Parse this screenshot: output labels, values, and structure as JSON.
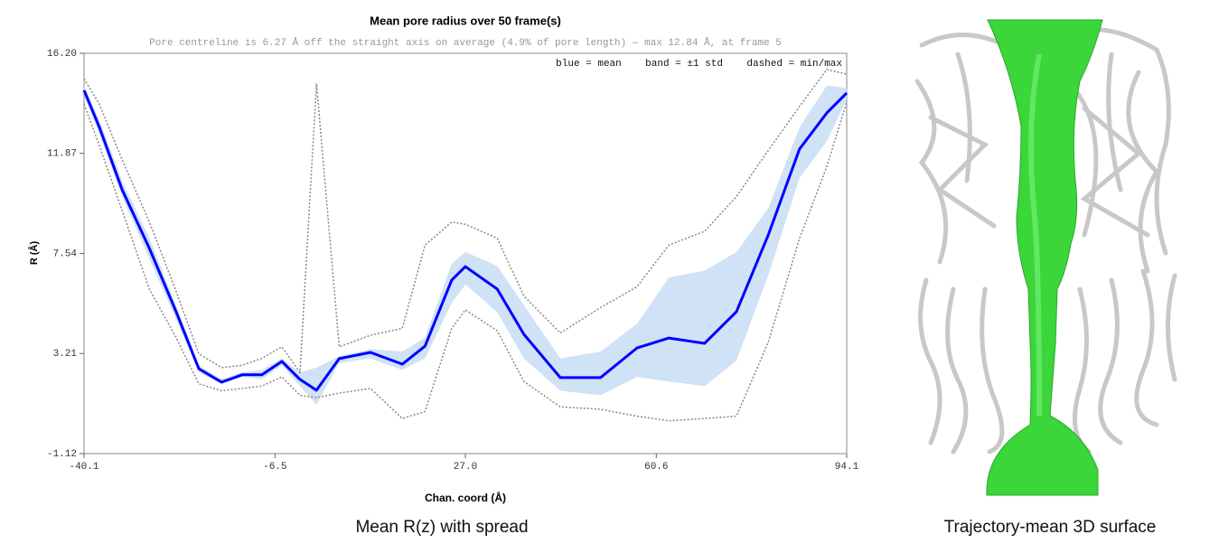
{
  "chart_data": {
    "type": "line-band",
    "title": "Mean pore radius over 50 frame(s)",
    "subtitle": "Pore centreline is 6.27 Å off the straight axis on average (4.9% of pore length) — max 12.84 Å, at frame 5",
    "annotation": "blue = mean    band = ±1 std    dashed = min/max",
    "xlabel": "Chan. coord (Å)",
    "ylabel": "R (Å)",
    "x": [
      -40.1,
      -37.4,
      -33.4,
      -28.6,
      -23.9,
      -19.9,
      -15.9,
      -12.3,
      -8.8,
      -5.3,
      -2.1,
      0.8,
      4.8,
      10.3,
      15.9,
      19.9,
      24.6,
      27.0,
      32.6,
      37.3,
      43.7,
      50.8,
      57.2,
      62.8,
      69.1,
      74.7,
      80.3,
      85.8,
      90.6,
      94.1
    ],
    "mean": [
      14.6,
      13.0,
      10.3,
      7.76,
      5.02,
      2.55,
      1.97,
      2.29,
      2.29,
      2.87,
      2.09,
      1.62,
      2.99,
      3.26,
      2.75,
      3.53,
      6.39,
      6.97,
      6.0,
      4.04,
      2.17,
      2.17,
      3.45,
      3.88,
      3.65,
      5.02,
      8.34,
      12.06,
      13.62,
      14.48
    ],
    "band_upper": [
      14.8,
      13.3,
      10.7,
      8.2,
      5.3,
      2.7,
      2.1,
      2.4,
      2.5,
      3.0,
      2.4,
      2.6,
      3.1,
      3.4,
      3.3,
      3.9,
      7.1,
      7.6,
      7.0,
      5.3,
      3.0,
      3.3,
      4.5,
      6.5,
      6.8,
      7.6,
      9.5,
      13.0,
      14.8,
      14.7
    ],
    "band_lower": [
      14.4,
      12.7,
      10.0,
      7.3,
      4.7,
      2.4,
      1.9,
      2.2,
      2.1,
      2.7,
      1.8,
      1.0,
      2.8,
      3.0,
      2.5,
      3.0,
      5.4,
      6.2,
      5.0,
      3.0,
      1.6,
      1.4,
      2.2,
      2.0,
      1.8,
      2.9,
      6.6,
      10.8,
      12.4,
      14.2
    ],
    "min": [
      14.0,
      12.2,
      9.4,
      6.0,
      3.9,
      1.9,
      1.6,
      1.7,
      1.8,
      2.2,
      1.4,
      1.3,
      1.5,
      1.7,
      0.4,
      0.7,
      4.3,
      5.1,
      4.2,
      2.0,
      0.9,
      0.8,
      0.5,
      0.3,
      0.4,
      0.5,
      3.7,
      8.2,
      11.3,
      14.1
    ],
    "max": [
      15.1,
      14.0,
      11.6,
      8.9,
      5.9,
      3.2,
      2.6,
      2.7,
      3.0,
      3.5,
      2.4,
      14.9,
      3.5,
      4.0,
      4.3,
      7.9,
      8.9,
      8.8,
      8.2,
      5.7,
      4.1,
      5.2,
      6.1,
      7.9,
      8.5,
      10.0,
      12.0,
      13.9,
      15.5,
      15.3
    ],
    "mean_color": "#0000ff",
    "band_color": "#cfe2f6",
    "extremes_color": "#888888",
    "xlim": [
      -40.1,
      94.1
    ],
    "xticks": [
      -40.1,
      -6.5,
      {
        "value": 27,
        "label": "27.0"
      },
      60.6,
      94.1
    ],
    "ylim": [
      -1.12,
      16.2
    ],
    "yticks": [
      -1.12,
      3.21,
      7.54,
      11.87,
      {
        "value": 16.2,
        "label": "16.20"
      }
    ]
  },
  "figure": {
    "caption_left": "Mean R(z) with spread",
    "caption_right": "Trajectory-mean 3D surface"
  }
}
